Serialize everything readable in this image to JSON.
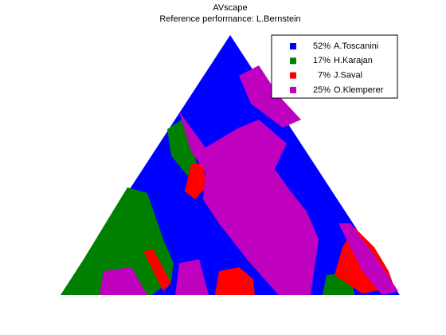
{
  "chart_data": {
    "type": "ternary-map",
    "title": "AVscape",
    "subtitle": "Reference performance: L.Bernstein",
    "categories": [
      "A.Toscanini",
      "H.Karajan",
      "J.Saval",
      "O.Klemperer"
    ],
    "values": [
      52,
      17,
      7,
      25
    ],
    "value_labels": [
      "52%",
      "17%",
      " 7%",
      "25%"
    ],
    "colors": [
      "#0000ff",
      "#007f00",
      "#ff0000",
      "#bf00bf"
    ],
    "legend": "upper right"
  }
}
